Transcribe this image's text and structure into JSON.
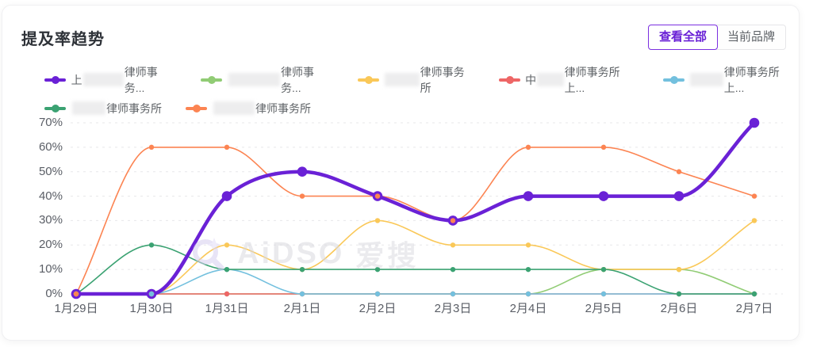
{
  "title": "提及率趋势",
  "controls": {
    "view_all_label": "查看全部",
    "current_brand_label": "当前品牌",
    "active": "查看全部"
  },
  "watermark": {
    "icon": "magnifier-sparkle-logo",
    "text_latin": "AiDSO",
    "text_cjk": "爱搜"
  },
  "colors": {
    "accent_purple": "#6A21D6",
    "active_button_border": "#7B2FE0",
    "axis_text": "#5A5E66",
    "grid_line": "#E7E7EA"
  },
  "chart_data": {
    "type": "line",
    "smooth": true,
    "grid": "horizontal dashed",
    "legend_position": "top-left two rows",
    "categories": [
      "1月29日",
      "1月30日",
      "1月31日",
      "2月1日",
      "2月2日",
      "2月3日",
      "2月4日",
      "2月5日",
      "2月6日",
      "2月7日"
    ],
    "ylim": [
      0,
      70
    ],
    "ytick_values": [
      0,
      10,
      20,
      30,
      40,
      50,
      60,
      70
    ],
    "ytick_labels": [
      "0%",
      "10%",
      "20%",
      "30%",
      "40%",
      "50%",
      "60%",
      "70%"
    ],
    "legend_rows": [
      [
        0,
        1,
        2,
        3,
        4
      ],
      [
        5,
        6
      ]
    ],
    "series": [
      {
        "label_prefix": "上",
        "label_redacted": true,
        "blur_w": 52,
        "label_suffix": "律师事务...",
        "color": "#6A21D6",
        "emphasis": true,
        "values": [
          0,
          0,
          40,
          50,
          40,
          30,
          40,
          40,
          40,
          70
        ]
      },
      {
        "label_prefix": "",
        "label_redacted": true,
        "blur_w": 66,
        "label_suffix": "律师事务...",
        "color": "#91CC75",
        "emphasis": false,
        "values": [
          0,
          0,
          0,
          0,
          0,
          0,
          0,
          10,
          10,
          0
        ]
      },
      {
        "label_prefix": "",
        "label_redacted": true,
        "blur_w": 44,
        "label_suffix": "律师事务所",
        "color": "#FAC858",
        "emphasis": false,
        "values": [
          0,
          0,
          20,
          10,
          30,
          20,
          20,
          10,
          10,
          30
        ]
      },
      {
        "label_prefix": "中",
        "label_redacted": true,
        "blur_w": 34,
        "label_suffix": "律师事务所上...",
        "color": "#EE6666",
        "emphasis": false,
        "values": [
          0,
          0,
          0,
          0,
          0,
          0,
          0,
          0,
          0,
          0
        ]
      },
      {
        "label_prefix": "",
        "label_redacted": true,
        "blur_w": 42,
        "label_suffix": "律师事务所上...",
        "color": "#73C0DE",
        "emphasis": false,
        "values": [
          0,
          0,
          10,
          0,
          0,
          0,
          0,
          0,
          0,
          0
        ]
      },
      {
        "label_prefix": "",
        "label_redacted": true,
        "blur_w": 42,
        "label_suffix": "律师事务所",
        "color": "#3BA272",
        "emphasis": false,
        "values": [
          0,
          20,
          10,
          10,
          10,
          10,
          10,
          10,
          0,
          0
        ]
      },
      {
        "label_prefix": "",
        "label_redacted": true,
        "blur_w": 52,
        "label_suffix": "律师事务所",
        "color": "#FC8452",
        "emphasis": false,
        "values": [
          0,
          60,
          60,
          40,
          40,
          30,
          60,
          60,
          50,
          40
        ]
      }
    ]
  }
}
